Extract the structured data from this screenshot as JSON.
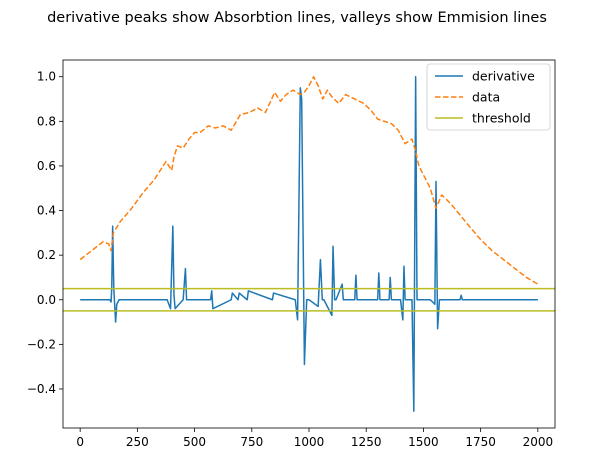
{
  "chart_data": {
    "type": "line",
    "title": "derivative peaks show Absorbtion lines, valleys show Emmision lines",
    "xlabel": "",
    "ylabel": "",
    "xlim": [
      -75,
      2075
    ],
    "ylim": [
      -0.575,
      1.075
    ],
    "xticks": [
      0,
      250,
      500,
      750,
      1000,
      1250,
      1500,
      1750,
      2000
    ],
    "yticks": [
      -0.4,
      -0.2,
      0.0,
      0.2,
      0.4,
      0.6,
      0.8,
      1.0
    ],
    "legend_position": "upper-right",
    "series": [
      {
        "name": "derivative",
        "style": "solid",
        "color": "#1f77b4",
        "x": [
          0,
          130,
          135,
          138,
          142,
          147,
          155,
          160,
          170,
          380,
          395,
          405,
          410,
          415,
          450,
          460,
          465,
          570,
          575,
          580,
          660,
          665,
          690,
          695,
          730,
          735,
          840,
          845,
          940,
          950,
          962,
          968,
          980,
          990,
          1000,
          1040,
          1050,
          1058,
          1065,
          1100,
          1105,
          1112,
          1118,
          1145,
          1150,
          1200,
          1205,
          1210,
          1300,
          1305,
          1310,
          1350,
          1355,
          1360,
          1400,
          1410,
          1415,
          1420,
          1450,
          1458,
          1466,
          1472,
          1480,
          1530,
          1550,
          1555,
          1562,
          1570,
          1580,
          1660,
          1665,
          1670,
          2000
        ],
        "y": [
          0.0,
          0.0,
          -0.01,
          0.05,
          0.33,
          0.05,
          -0.1,
          -0.02,
          0.0,
          0.0,
          -0.04,
          0.33,
          0.02,
          -0.04,
          0.0,
          0.14,
          0.0,
          0.0,
          0.04,
          -0.04,
          0.0,
          0.03,
          0.0,
          0.03,
          0.0,
          0.04,
          0.0,
          0.03,
          0.0,
          -0.09,
          0.95,
          0.9,
          -0.29,
          0.0,
          0.0,
          -0.03,
          0.18,
          0.0,
          0.0,
          -0.07,
          0.24,
          0.0,
          0.0,
          0.07,
          0.0,
          0.0,
          0.11,
          0.0,
          0.0,
          0.12,
          0.0,
          0.0,
          0.1,
          0.0,
          0.0,
          -0.09,
          0.15,
          0.0,
          0.0,
          -0.5,
          1.0,
          0.0,
          0.0,
          0.0,
          -0.02,
          0.53,
          -0.13,
          0.0,
          0.0,
          0.0,
          0.02,
          0.0,
          0.0
        ]
      },
      {
        "name": "data",
        "style": "dashed",
        "color": "#ff7f0e",
        "x": [
          0,
          50,
          100,
          125,
          135,
          145,
          175,
          225,
          275,
          325,
          375,
          400,
          410,
          425,
          450,
          475,
          500,
          525,
          560,
          590,
          625,
          660,
          700,
          740,
          775,
          810,
          850,
          875,
          900,
          930,
          962,
          980,
          1000,
          1020,
          1040,
          1060,
          1080,
          1100,
          1130,
          1160,
          1200,
          1240,
          1270,
          1300,
          1330,
          1360,
          1390,
          1420,
          1450,
          1465,
          1480,
          1500,
          1530,
          1555,
          1580,
          1620,
          1660,
          1700,
          1750,
          1800,
          1850,
          1900,
          1950,
          2000
        ],
        "y": [
          0.18,
          0.22,
          0.26,
          0.25,
          0.22,
          0.3,
          0.35,
          0.41,
          0.48,
          0.54,
          0.62,
          0.58,
          0.64,
          0.69,
          0.68,
          0.72,
          0.75,
          0.75,
          0.78,
          0.77,
          0.78,
          0.76,
          0.83,
          0.84,
          0.86,
          0.84,
          0.93,
          0.89,
          0.92,
          0.94,
          0.92,
          0.93,
          0.96,
          1.0,
          0.96,
          0.9,
          0.94,
          0.91,
          0.88,
          0.92,
          0.9,
          0.88,
          0.85,
          0.81,
          0.8,
          0.79,
          0.76,
          0.7,
          0.72,
          0.67,
          0.6,
          0.56,
          0.5,
          0.41,
          0.47,
          0.43,
          0.38,
          0.33,
          0.27,
          0.22,
          0.18,
          0.14,
          0.1,
          0.07
        ]
      },
      {
        "name": "threshold",
        "style": "solid",
        "color": "#bcbd22",
        "hlines": [
          0.05,
          -0.05
        ]
      }
    ]
  }
}
